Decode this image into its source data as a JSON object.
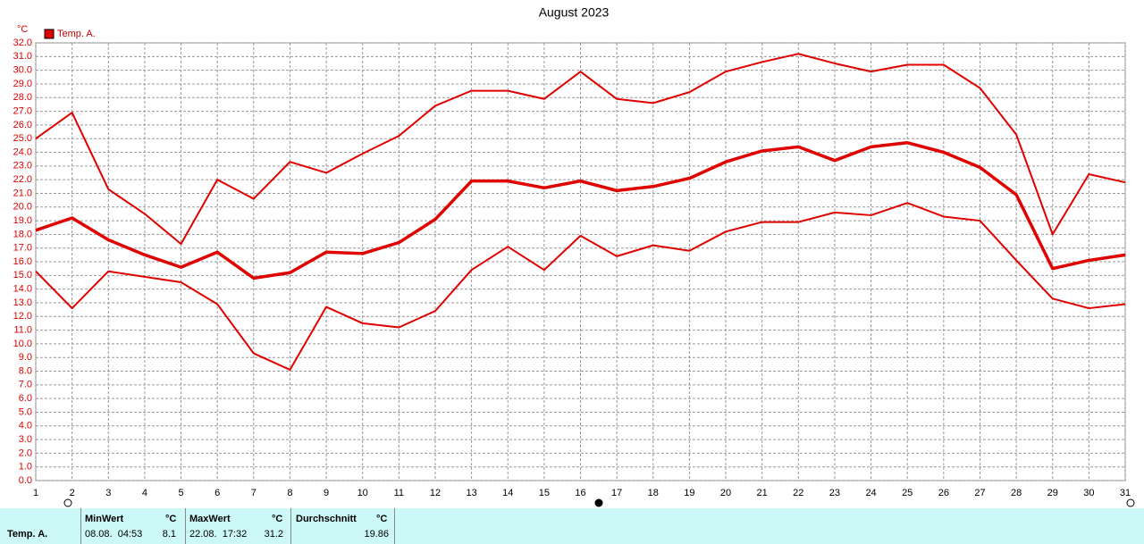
{
  "chart_data": {
    "type": "line",
    "title": "August 2023",
    "y_unit": "°C",
    "legend": "Temp. A.",
    "legend_color": "#e00000",
    "x": [
      1,
      2,
      3,
      4,
      5,
      6,
      7,
      8,
      9,
      10,
      11,
      12,
      13,
      14,
      15,
      16,
      17,
      18,
      19,
      20,
      21,
      22,
      23,
      24,
      25,
      26,
      27,
      28,
      29,
      30,
      31
    ],
    "xlim": [
      1,
      31
    ],
    "xticks": [
      1,
      2,
      3,
      4,
      5,
      6,
      7,
      8,
      9,
      10,
      11,
      12,
      13,
      14,
      15,
      16,
      17,
      18,
      19,
      20,
      21,
      22,
      23,
      24,
      25,
      26,
      27,
      28,
      29,
      30,
      31
    ],
    "ylim": [
      0,
      32
    ],
    "yticks": [
      {
        "value": 0,
        "label": "0.0"
      },
      {
        "value": 1,
        "label": "1.0"
      },
      {
        "value": 2,
        "label": "2.0"
      },
      {
        "value": 3,
        "label": "3.0"
      },
      {
        "value": 4,
        "label": "4.0"
      },
      {
        "value": 5,
        "label": "5.0"
      },
      {
        "value": 6,
        "label": "6.0"
      },
      {
        "value": 7,
        "label": "7.0"
      },
      {
        "value": 8,
        "label": "8.0"
      },
      {
        "value": 9,
        "label": "9.0"
      },
      {
        "value": 10,
        "label": "10.0"
      },
      {
        "value": 11,
        "label": "11.0"
      },
      {
        "value": 12,
        "label": "12.0"
      },
      {
        "value": 13,
        "label": "13.0"
      },
      {
        "value": 14,
        "label": "14.0"
      },
      {
        "value": 15,
        "label": "15.0"
      },
      {
        "value": 16,
        "label": "16.0"
      },
      {
        "value": 17,
        "label": "17.0"
      },
      {
        "value": 18,
        "label": "18.0"
      },
      {
        "value": 19,
        "label": "19.0"
      },
      {
        "value": 20,
        "label": "20.0"
      },
      {
        "value": 21,
        "label": "21.0"
      },
      {
        "value": 22,
        "label": "22.0"
      },
      {
        "value": 23,
        "label": "23.0"
      },
      {
        "value": 24,
        "label": "24.0"
      },
      {
        "value": 25,
        "label": "25.0"
      },
      {
        "value": 26,
        "label": "26.0"
      },
      {
        "value": 27,
        "label": "27.0"
      },
      {
        "value": 28,
        "label": "28.0"
      },
      {
        "value": 29,
        "label": "29.0"
      },
      {
        "value": 30,
        "label": "30.0"
      },
      {
        "value": 31,
        "label": "31.0"
      },
      {
        "value": 32,
        "label": "32.0"
      }
    ],
    "grid": true,
    "series": [
      {
        "color": "#e00000",
        "line_width": 2,
        "values": [
          25.0,
          26.9,
          21.3,
          19.5,
          17.3,
          22.0,
          20.6,
          23.3,
          22.5,
          23.9,
          25.2,
          27.4,
          28.5,
          28.5,
          27.9,
          29.9,
          27.9,
          27.6,
          28.4,
          29.9,
          30.6,
          31.2,
          30.5,
          29.9,
          30.4,
          30.4,
          28.7,
          25.3,
          18.0,
          22.4,
          21.8
        ]
      },
      {
        "color": "#e00000",
        "line_width": 3.5,
        "values": [
          18.3,
          19.2,
          17.6,
          16.5,
          15.6,
          16.7,
          14.8,
          15.2,
          16.7,
          16.6,
          17.4,
          19.1,
          21.9,
          21.9,
          21.4,
          21.9,
          21.2,
          21.5,
          22.1,
          23.3,
          24.1,
          24.4,
          23.4,
          24.4,
          24.7,
          24.0,
          22.9,
          20.9,
          15.5,
          16.1,
          16.5
        ]
      },
      {
        "color": "#e00000",
        "line_width": 2,
        "values": [
          15.3,
          12.6,
          15.3,
          14.9,
          14.5,
          12.9,
          9.3,
          8.1,
          12.7,
          11.5,
          11.2,
          12.4,
          15.4,
          17.1,
          15.4,
          17.9,
          16.4,
          17.2,
          16.8,
          18.2,
          18.9,
          18.9,
          19.6,
          19.4,
          20.3,
          19.3,
          19.0,
          16.1,
          13.3,
          12.6,
          12.9
        ]
      }
    ]
  },
  "summary": {
    "row_label": "Temp. A.",
    "columns": [
      {
        "header": "MinWert",
        "unit": "°C",
        "time": "08.08.  04:53",
        "value": 8.1
      },
      {
        "header": "MaxWert",
        "unit": "°C",
        "time": "22.08.  17:32",
        "value": 31.2
      },
      {
        "header": "Durchschnitt",
        "unit": "°C",
        "value": 19.86
      }
    ]
  }
}
